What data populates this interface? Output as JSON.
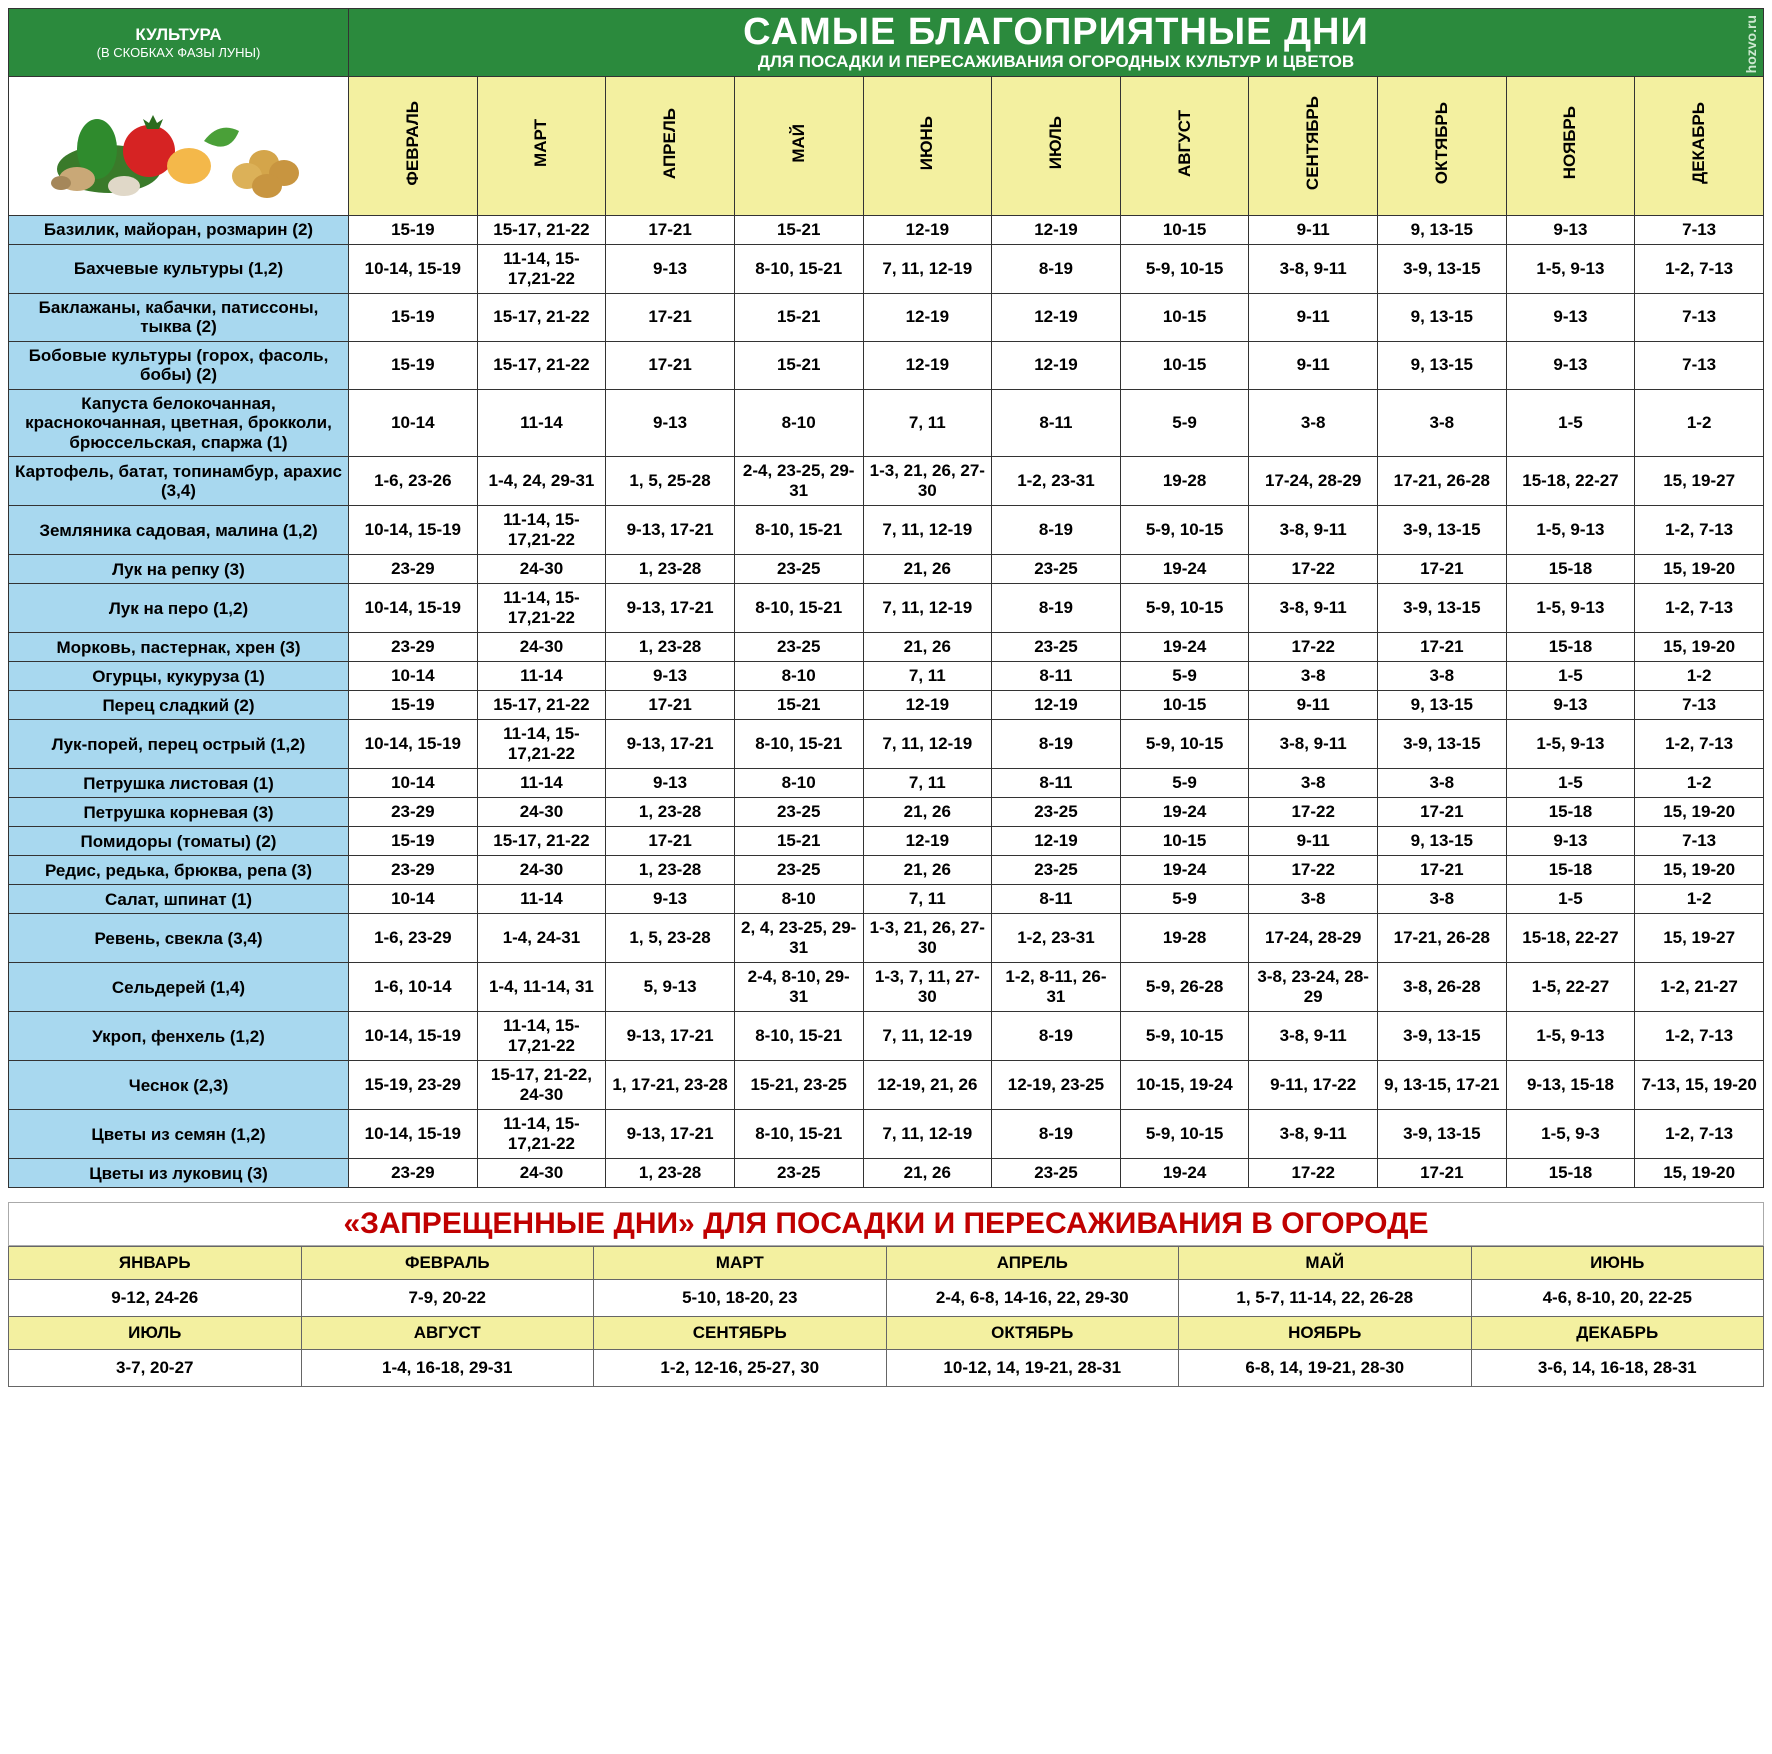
{
  "header": {
    "culture_label": "КУЛЬТУРА",
    "culture_sublabel": "(В СКОБКАХ ФАЗЫ ЛУНЫ)",
    "title_big": "САМЫЕ БЛАГОПРИЯТНЫЕ ДНИ",
    "title_sub": "ДЛЯ ПОСАДКИ И ПЕРЕСАЖИВАНИЯ ОГОРОДНЫХ КУЛЬТУР И ЦВЕТОВ",
    "watermark": "hozvo.ru"
  },
  "months": [
    "ФЕВРАЛЬ",
    "МАРТ",
    "АПРЕЛЬ",
    "МАЙ",
    "ИЮНЬ",
    "ИЮЛЬ",
    "АВГУСТ",
    "СЕНТЯБРЬ",
    "ОКТЯБРЬ",
    "НОЯБРЬ",
    "ДЕКАБРЬ"
  ],
  "rows": [
    {
      "label": "Базилик, майоран, розмарин (2)",
      "cells": [
        "15-19",
        "15-17, 21-22",
        "17-21",
        "15-21",
        "12-19",
        "12-19",
        "10-15",
        "9-11",
        "9, 13-15",
        "9-13",
        "7-13"
      ]
    },
    {
      "label": "Бахчевые культуры (1,2)",
      "cells": [
        "10-14, 15-19",
        "11-14, 15-17,21-22",
        "9-13",
        "8-10, 15-21",
        "7, 11, 12-19",
        "8-19",
        "5-9, 10-15",
        "3-8, 9-11",
        "3-9, 13-15",
        "1-5, 9-13",
        "1-2, 7-13"
      ]
    },
    {
      "label": "Баклажаны, кабачки, патиссоны, тыква (2)",
      "cells": [
        "15-19",
        "15-17, 21-22",
        "17-21",
        "15-21",
        "12-19",
        "12-19",
        "10-15",
        "9-11",
        "9, 13-15",
        "9-13",
        "7-13"
      ]
    },
    {
      "label": "Бобовые культуры (горох, фасоль, бобы) (2)",
      "cells": [
        "15-19",
        "15-17, 21-22",
        "17-21",
        "15-21",
        "12-19",
        "12-19",
        "10-15",
        "9-11",
        "9, 13-15",
        "9-13",
        "7-13"
      ]
    },
    {
      "label": "Капуста белокочанная, краснокочанная, цветная, брокколи, брюссельская, спаржа (1)",
      "cells": [
        "10-14",
        "11-14",
        "9-13",
        "8-10",
        "7, 11",
        "8-11",
        "5-9",
        "3-8",
        "3-8",
        "1-5",
        "1-2"
      ]
    },
    {
      "label": "Картофель, батат, топинамбур, арахис (3,4)",
      "cells": [
        "1-6, 23-26",
        "1-4, 24, 29-31",
        "1, 5, 25-28",
        "2-4, 23-25, 29-31",
        "1-3, 21, 26, 27-30",
        "1-2, 23-31",
        "19-28",
        "17-24, 28-29",
        "17-21, 26-28",
        "15-18, 22-27",
        "15, 19-27"
      ]
    },
    {
      "label": "Земляника садовая, малина (1,2)",
      "cells": [
        "10-14, 15-19",
        "11-14, 15-17,21-22",
        "9-13, 17-21",
        "8-10, 15-21",
        "7, 11, 12-19",
        "8-19",
        "5-9, 10-15",
        "3-8, 9-11",
        "3-9, 13-15",
        "1-5, 9-13",
        "1-2, 7-13"
      ]
    },
    {
      "label": "Лук на репку (3)",
      "cells": [
        "23-29",
        "24-30",
        "1, 23-28",
        "23-25",
        "21, 26",
        "23-25",
        "19-24",
        "17-22",
        "17-21",
        "15-18",
        "15, 19-20"
      ]
    },
    {
      "label": "Лук на перо (1,2)",
      "cells": [
        "10-14, 15-19",
        "11-14, 15-17,21-22",
        "9-13, 17-21",
        "8-10, 15-21",
        "7, 11, 12-19",
        "8-19",
        "5-9, 10-15",
        "3-8, 9-11",
        "3-9, 13-15",
        "1-5, 9-13",
        "1-2, 7-13"
      ]
    },
    {
      "label": "Морковь, пастернак, хрен (3)",
      "cells": [
        "23-29",
        "24-30",
        "1, 23-28",
        "23-25",
        "21, 26",
        "23-25",
        "19-24",
        "17-22",
        "17-21",
        "15-18",
        "15, 19-20"
      ]
    },
    {
      "label": "Огурцы, кукуруза (1)",
      "cells": [
        "10-14",
        "11-14",
        "9-13",
        "8-10",
        "7, 11",
        "8-11",
        "5-9",
        "3-8",
        "3-8",
        "1-5",
        "1-2"
      ]
    },
    {
      "label": "Перец сладкий (2)",
      "cells": [
        "15-19",
        "15-17, 21-22",
        "17-21",
        "15-21",
        "12-19",
        "12-19",
        "10-15",
        "9-11",
        "9, 13-15",
        "9-13",
        "7-13"
      ]
    },
    {
      "label": "Лук-порей, перец острый (1,2)",
      "cells": [
        "10-14, 15-19",
        "11-14, 15-17,21-22",
        "9-13, 17-21",
        "8-10, 15-21",
        "7, 11, 12-19",
        "8-19",
        "5-9, 10-15",
        "3-8, 9-11",
        "3-9, 13-15",
        "1-5, 9-13",
        "1-2, 7-13"
      ]
    },
    {
      "label": "Петрушка листовая (1)",
      "cells": [
        "10-14",
        "11-14",
        "9-13",
        "8-10",
        "7, 11",
        "8-11",
        "5-9",
        "3-8",
        "3-8",
        "1-5",
        "1-2"
      ]
    },
    {
      "label": "Петрушка корневая (3)",
      "cells": [
        "23-29",
        "24-30",
        "1, 23-28",
        "23-25",
        "21, 26",
        "23-25",
        "19-24",
        "17-22",
        "17-21",
        "15-18",
        "15, 19-20"
      ]
    },
    {
      "label": "Помидоры (томаты) (2)",
      "cells": [
        "15-19",
        "15-17, 21-22",
        "17-21",
        "15-21",
        "12-19",
        "12-19",
        "10-15",
        "9-11",
        "9, 13-15",
        "9-13",
        "7-13"
      ]
    },
    {
      "label": "Редис, редька, брюква, репа (3)",
      "cells": [
        "23-29",
        "24-30",
        "1, 23-28",
        "23-25",
        "21, 26",
        "23-25",
        "19-24",
        "17-22",
        "17-21",
        "15-18",
        "15, 19-20"
      ]
    },
    {
      "label": "Салат, шпинат (1)",
      "cells": [
        "10-14",
        "11-14",
        "9-13",
        "8-10",
        "7, 11",
        "8-11",
        "5-9",
        "3-8",
        "3-8",
        "1-5",
        "1-2"
      ]
    },
    {
      "label": "Ревень, свекла (3,4)",
      "cells": [
        "1-6, 23-29",
        "1-4, 24-31",
        "1, 5, 23-28",
        "2, 4, 23-25, 29-31",
        "1-3, 21, 26, 27-30",
        "1-2, 23-31",
        "19-28",
        "17-24, 28-29",
        "17-21, 26-28",
        "15-18, 22-27",
        "15, 19-27"
      ]
    },
    {
      "label": "Сельдерей (1,4)",
      "cells": [
        "1-6, 10-14",
        "1-4, 11-14, 31",
        "5, 9-13",
        "2-4, 8-10, 29-31",
        "1-3, 7, 11, 27-30",
        "1-2, 8-11, 26-31",
        "5-9, 26-28",
        "3-8, 23-24, 28-29",
        "3-8, 26-28",
        "1-5, 22-27",
        "1-2, 21-27"
      ]
    },
    {
      "label": "Укроп, фенхель (1,2)",
      "cells": [
        "10-14, 15-19",
        "11-14, 15-17,21-22",
        "9-13, 17-21",
        "8-10, 15-21",
        "7, 11, 12-19",
        "8-19",
        "5-9, 10-15",
        "3-8, 9-11",
        "3-9, 13-15",
        "1-5, 9-13",
        "1-2, 7-13"
      ]
    },
    {
      "label": "Чеснок (2,3)",
      "cells": [
        "15-19, 23-29",
        "15-17, 21-22, 24-30",
        "1, 17-21, 23-28",
        "15-21, 23-25",
        "12-19, 21, 26",
        "12-19, 23-25",
        "10-15, 19-24",
        "9-11, 17-22",
        "9, 13-15, 17-21",
        "9-13, 15-18",
        "7-13, 15, 19-20"
      ]
    },
    {
      "label": "Цветы из семян (1,2)",
      "cells": [
        "10-14, 15-19",
        "11-14, 15-17,21-22",
        "9-13, 17-21",
        "8-10, 15-21",
        "7, 11, 12-19",
        "8-19",
        "5-9, 10-15",
        "3-8, 9-11",
        "3-9, 13-15",
        "1-5, 9-3",
        "1-2, 7-13"
      ]
    },
    {
      "label": "Цветы из луковиц (3)",
      "cells": [
        "23-29",
        "24-30",
        "1, 23-28",
        "23-25",
        "21, 26",
        "23-25",
        "19-24",
        "17-22",
        "17-21",
        "15-18",
        "15, 19-20"
      ]
    }
  ],
  "forbidden": {
    "title": "«ЗАПРЕЩЕННЫЕ ДНИ» ДЛЯ ПОСАДКИ И ПЕРЕСАЖИВАНИЯ В ОГОРОДЕ",
    "months_row1": [
      "ЯНВАРЬ",
      "ФЕВРАЛЬ",
      "МАРТ",
      "АПРЕЛЬ",
      "МАЙ",
      "ИЮНЬ"
    ],
    "values_row1": [
      "9-12, 24-26",
      "7-9, 20-22",
      "5-10, 18-20, 23",
      "2-4, 6-8, 14-16, 22, 29-30",
      "1, 5-7, 11-14, 22, 26-28",
      "4-6, 8-10, 20, 22-25"
    ],
    "months_row2": [
      "ИЮЛЬ",
      "АВГУСТ",
      "СЕНТЯБРЬ",
      "ОКТЯБРЬ",
      "НОЯБРЬ",
      "ДЕКАБРЬ"
    ],
    "values_row2": [
      "3-7, 20-27",
      "1-4, 16-18, 29-31",
      "1-2, 12-16, 25-27, 30",
      "10-12, 14, 19-21, 28-31",
      "6-8, 14, 19-21, 28-30",
      "3-6, 14, 16-18, 28-31"
    ]
  },
  "style": {
    "header_bg": "#2b8a3d",
    "month_bg": "#f3f0a0",
    "row_label_bg": "#a8d8ef",
    "forbidden_color": "#c00000"
  }
}
